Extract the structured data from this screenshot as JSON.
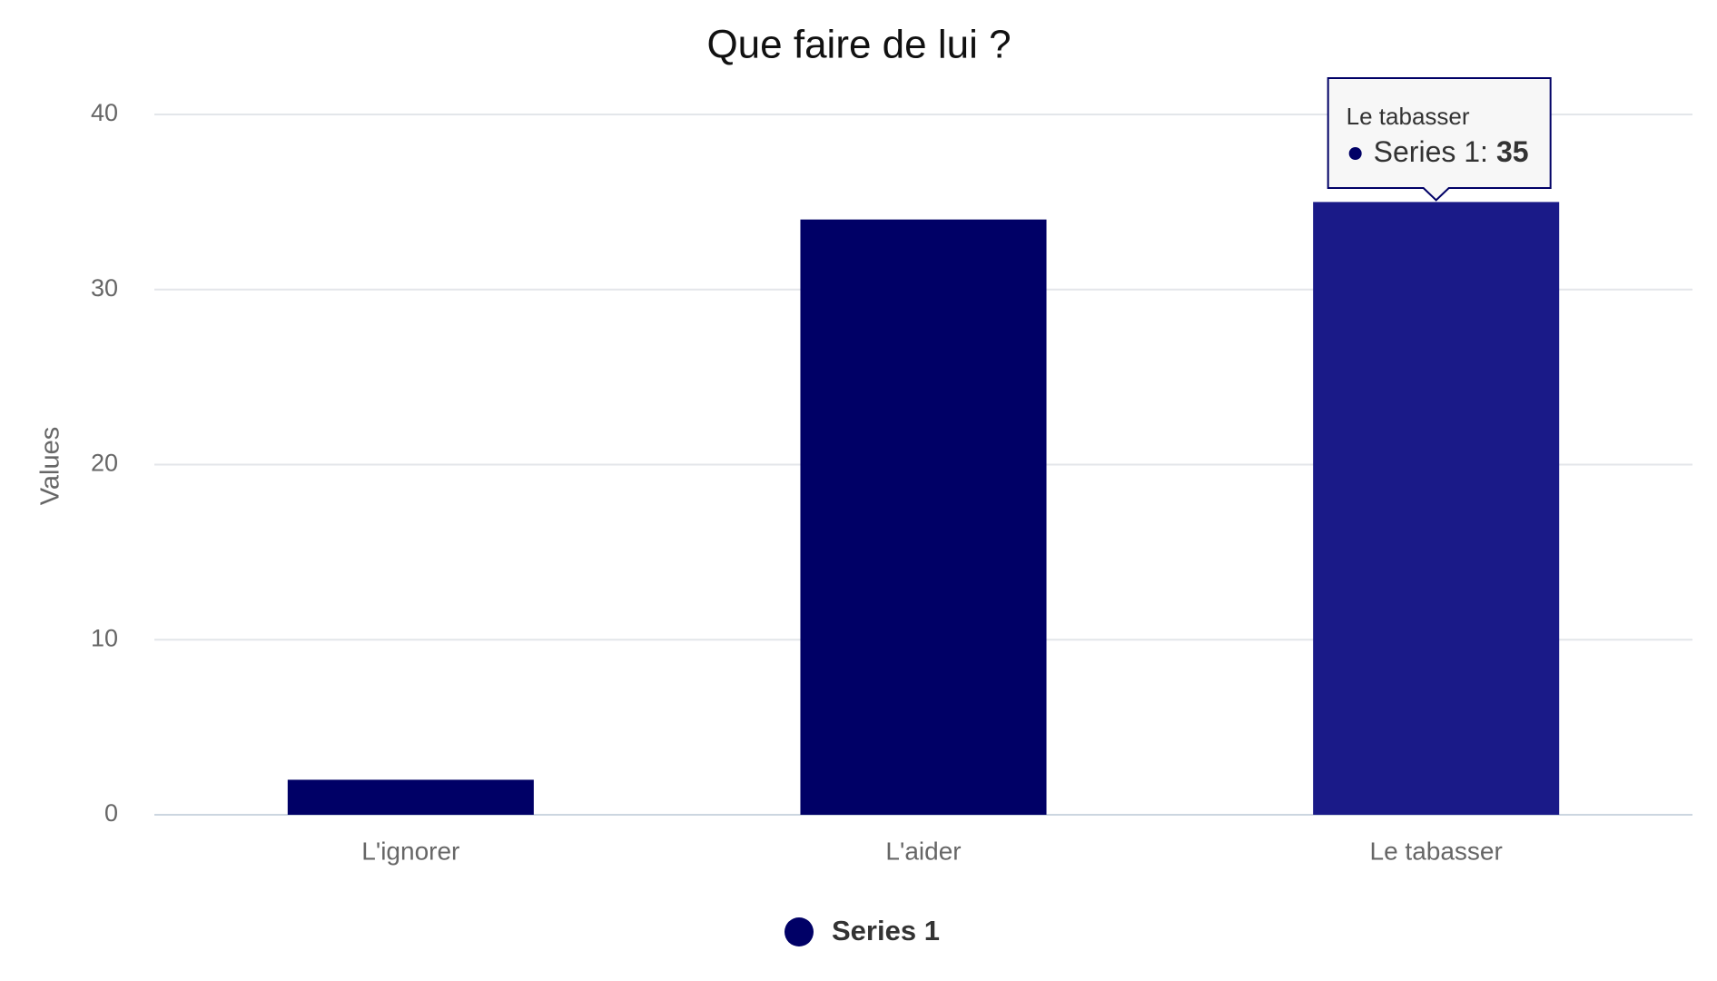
{
  "chart_data": {
    "type": "bar",
    "title": "Que faire de lui ?",
    "y_label": "Values",
    "categories": [
      "L'ignorer",
      "L'aider",
      "Le tabasser"
    ],
    "series": [
      {
        "name": "Series 1",
        "color": "#000066",
        "values": [
          2,
          34,
          35
        ]
      }
    ],
    "ylim": [
      0,
      40
    ],
    "yticks": [
      0,
      10,
      20,
      30,
      40
    ],
    "grid": true,
    "legend": "bottom",
    "tooltip": {
      "title": "Le tabasser",
      "label": "Series 1:",
      "value": 35,
      "bar_color": "#1a1a88"
    }
  }
}
